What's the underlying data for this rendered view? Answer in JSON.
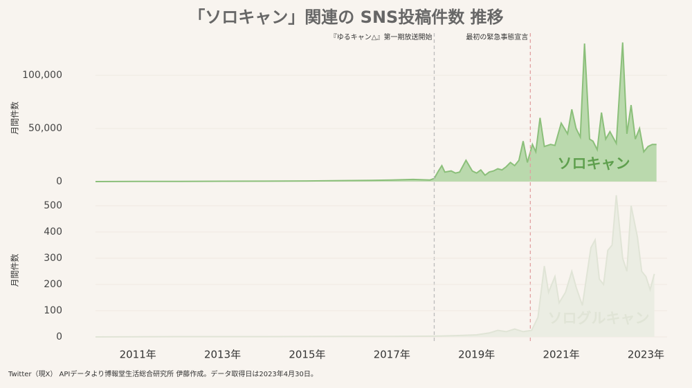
{
  "title": "「ソロキャン」関連の SNS投稿件数 推移",
  "source": "Twitter（現X） APIデータより博報堂生活総合研究所 伊藤作成。データ取得日は2023年4月30日。",
  "chart_data": [
    {
      "type": "area",
      "y_label": "月間件数",
      "xlim": [
        2010,
        2023.5
      ],
      "ylim": [
        0,
        130000
      ],
      "yticks": [
        0,
        {
          "value": 50000,
          "label": "50,000"
        },
        {
          "value": 100000,
          "label": "100,000"
        }
      ],
      "grid": true,
      "annotations": [
        {
          "x": 2018.0,
          "label": "『ゆるキャン△』第一期放送開始",
          "color": "#bbbbbb"
        },
        {
          "x": 2020.27,
          "label": "最初の緊急事態宣言",
          "color": "#e0a0a0"
        }
      ],
      "x": [
        2010,
        2011,
        2012,
        2013,
        2014,
        2015,
        2016,
        2016.5,
        2017,
        2017.5,
        2017.9,
        2018.0,
        2018.1,
        2018.18,
        2018.25,
        2018.4,
        2018.5,
        2018.6,
        2018.75,
        2018.9,
        2019.0,
        2019.1,
        2019.2,
        2019.3,
        2019.4,
        2019.5,
        2019.6,
        2019.7,
        2019.8,
        2019.9,
        2020.0,
        2020.1,
        2020.2,
        2020.25,
        2020.32,
        2020.4,
        2020.5,
        2020.6,
        2020.75,
        2020.85,
        2021.0,
        2021.15,
        2021.25,
        2021.35,
        2021.45,
        2021.55,
        2021.67,
        2021.75,
        2021.85,
        2021.95,
        2022.05,
        2022.15,
        2022.3,
        2022.45,
        2022.55,
        2022.65,
        2022.75,
        2022.85,
        2022.95,
        2023.05,
        2023.15,
        2023.25
      ],
      "series": [
        {
          "name": "ソロキャン",
          "color": "#8bbf7a",
          "fill": "#bad9ad",
          "label_color": "#5e9f4d",
          "values": [
            0,
            100,
            200,
            300,
            400,
            600,
            1000,
            1200,
            1500,
            2000,
            1500,
            3000,
            10000,
            15000,
            9000,
            10000,
            8000,
            9000,
            20000,
            10000,
            8000,
            11000,
            6000,
            9000,
            10000,
            12000,
            11000,
            14000,
            18000,
            15000,
            20000,
            38000,
            18000,
            25000,
            35000,
            28000,
            60000,
            33000,
            35000,
            34000,
            55000,
            45000,
            68000,
            50000,
            42000,
            130000,
            40000,
            38000,
            30000,
            65000,
            40000,
            47000,
            36000,
            131000,
            45000,
            72000,
            40000,
            50000,
            28000,
            33000,
            35000,
            35000
          ]
        }
      ]
    },
    {
      "type": "area",
      "y_label": "月間件数",
      "xlim": [
        2010,
        2023.5
      ],
      "ylim": [
        0,
        550
      ],
      "yticks": [
        0,
        100,
        200,
        300,
        400,
        500
      ],
      "xticks": [
        {
          "value": 2011,
          "label": "2011年"
        },
        {
          "value": 2013,
          "label": "2013年"
        },
        {
          "value": 2015,
          "label": "2015年"
        },
        {
          "value": 2017,
          "label": "2017年"
        },
        {
          "value": 2019,
          "label": "2019年"
        },
        {
          "value": 2021,
          "label": "2021年"
        },
        {
          "value": 2023,
          "label": "2023年"
        }
      ],
      "grid": true,
      "x": [
        2010,
        2012,
        2014,
        2016,
        2017,
        2018,
        2018.5,
        2019,
        2019.3,
        2019.5,
        2019.7,
        2019.9,
        2020.1,
        2020.3,
        2020.45,
        2020.6,
        2020.7,
        2020.85,
        2020.95,
        2021.1,
        2021.25,
        2021.35,
        2021.5,
        2021.6,
        2021.7,
        2021.8,
        2021.9,
        2022.0,
        2022.1,
        2022.2,
        2022.3,
        2022.45,
        2022.55,
        2022.65,
        2022.8,
        2022.9,
        2023.0,
        2023.1,
        2023.2
      ],
      "series": [
        {
          "name": "ソログルキャン",
          "color": "#e0e4d6",
          "fill": "#ebede3",
          "label_color": "#e0e4d6",
          "values": [
            0,
            1,
            1,
            2,
            2,
            3,
            5,
            8,
            15,
            25,
            20,
            30,
            20,
            25,
            75,
            270,
            170,
            230,
            130,
            170,
            250,
            190,
            120,
            230,
            340,
            370,
            220,
            200,
            330,
            350,
            540,
            300,
            250,
            500,
            380,
            250,
            230,
            180,
            240
          ]
        }
      ]
    }
  ]
}
